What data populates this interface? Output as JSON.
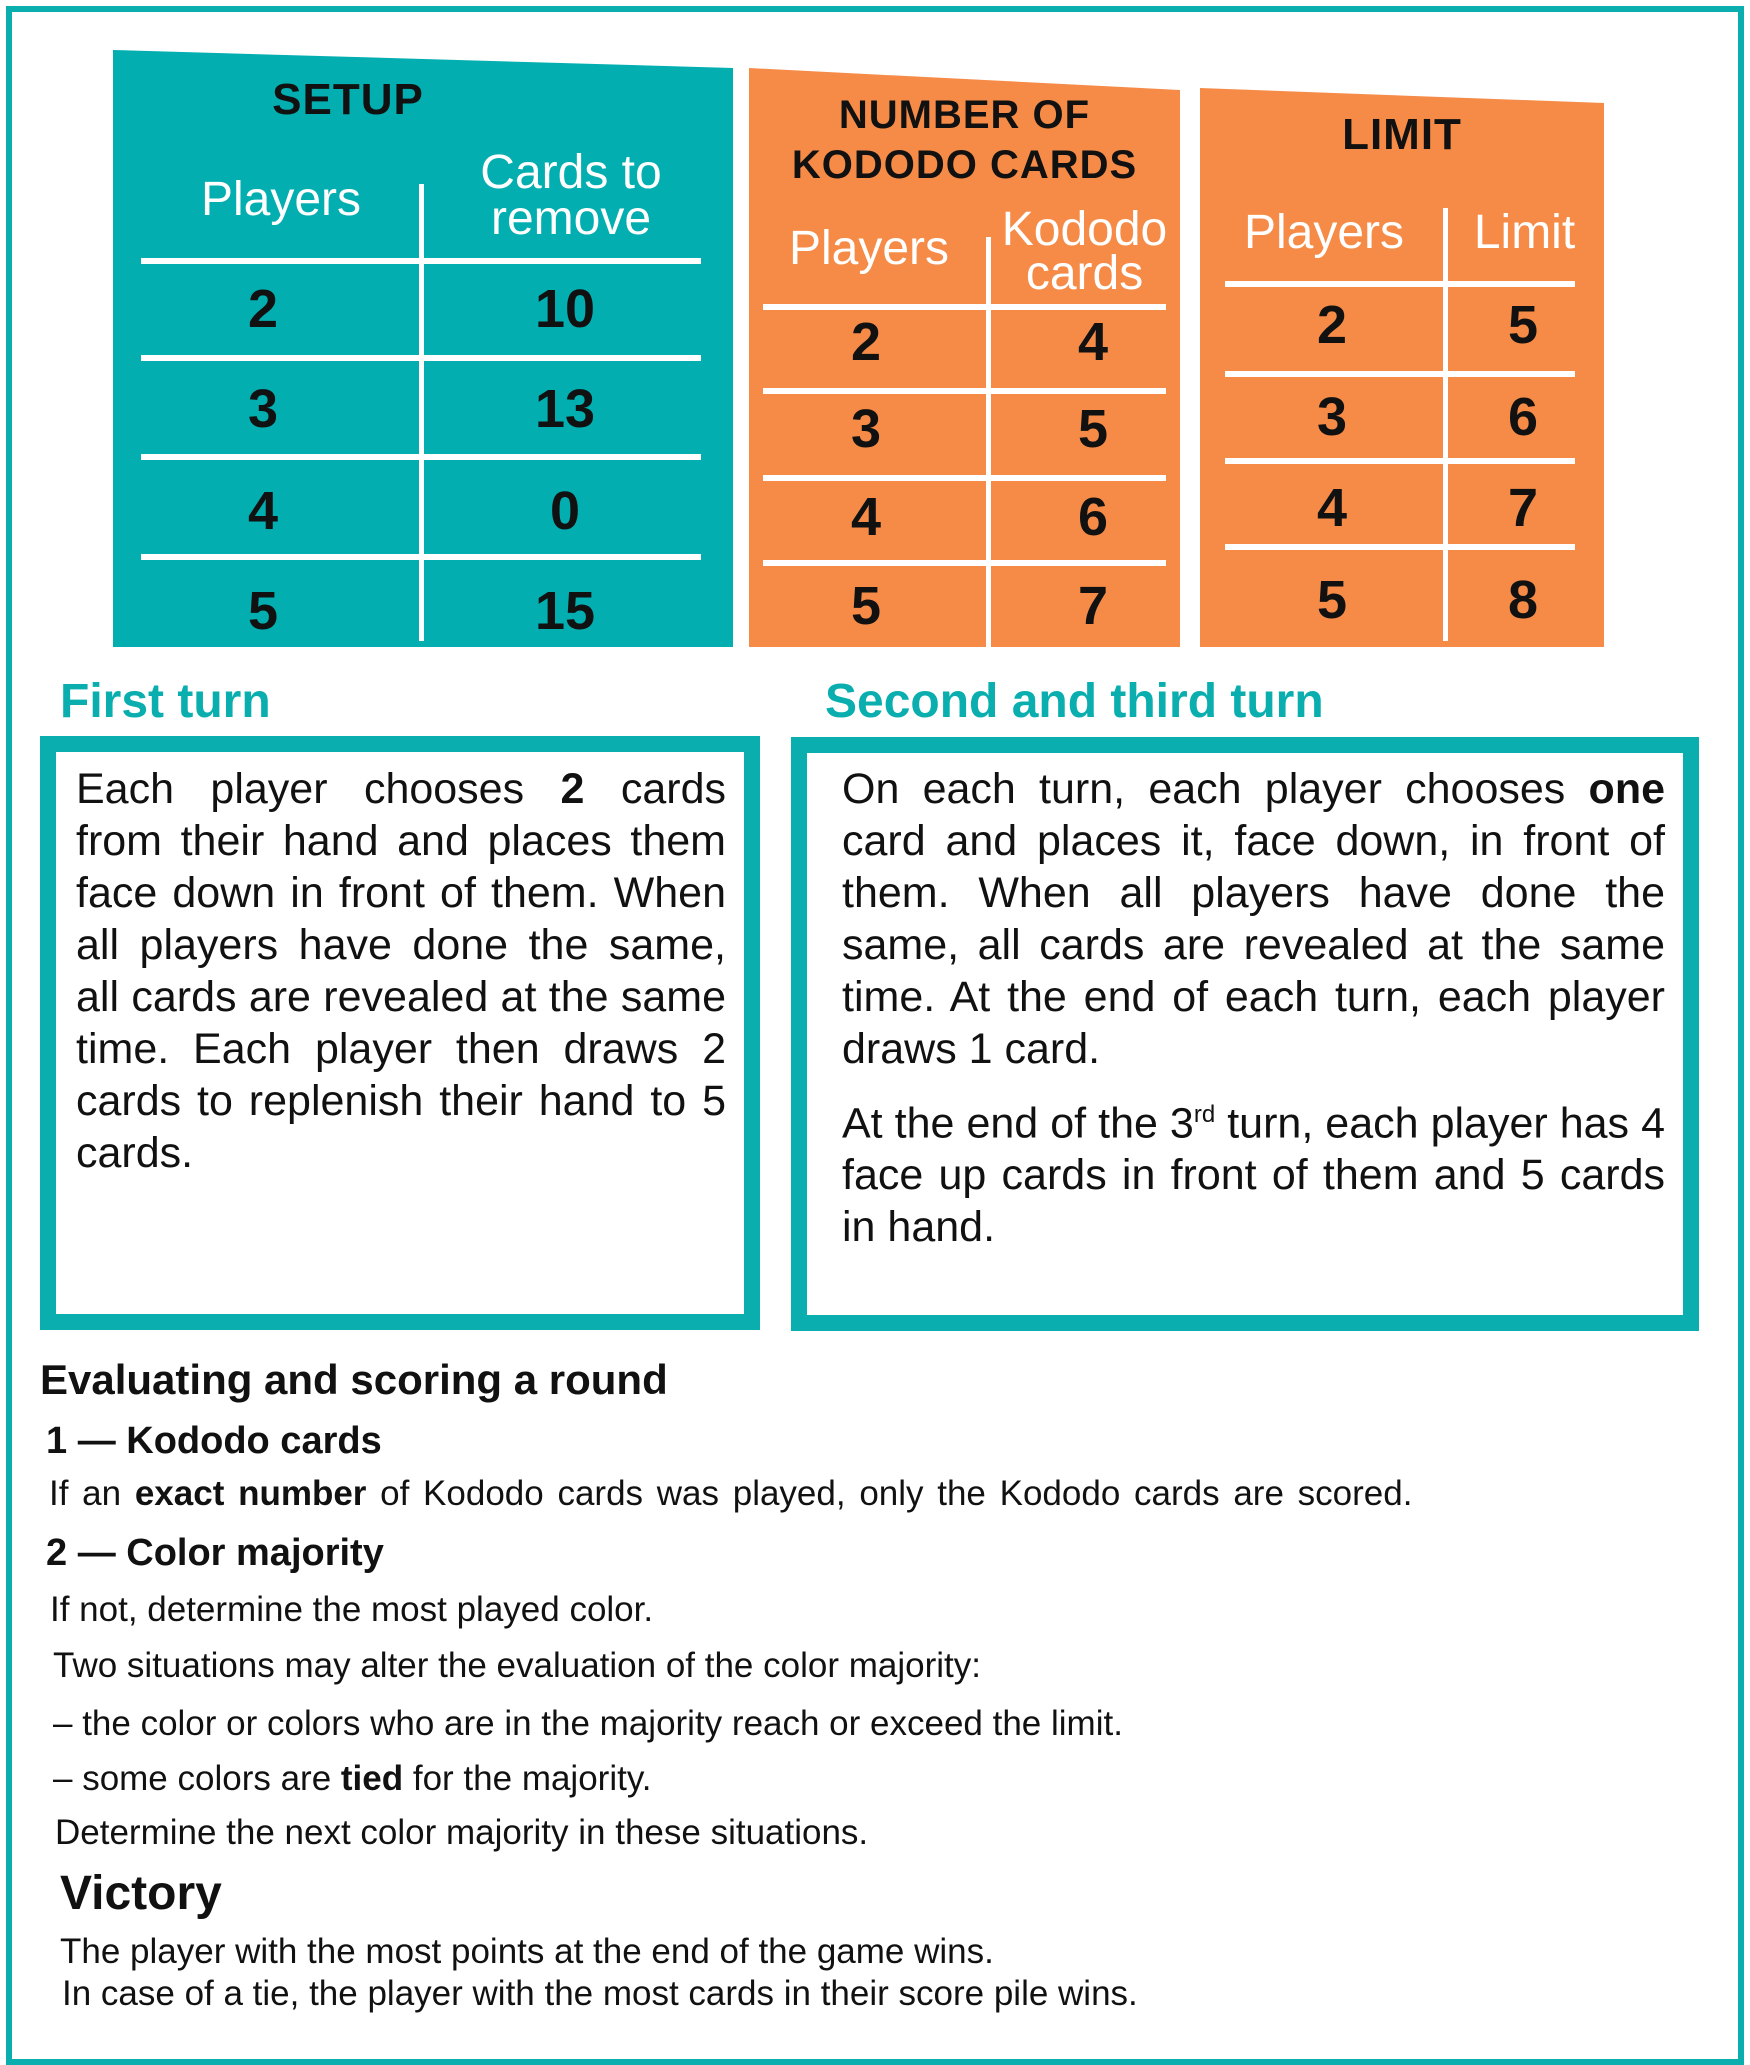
{
  "colors": {
    "teal": "#02aeb0",
    "orange": "#f58b47",
    "text": "#111111"
  },
  "setup": {
    "title": "SETUP",
    "col1": "Players",
    "col2_line1": "Cards to",
    "col2_line2": "remove",
    "rows": [
      [
        "2",
        "10"
      ],
      [
        "3",
        "13"
      ],
      [
        "4",
        "0"
      ],
      [
        "5",
        "15"
      ]
    ]
  },
  "kododo": {
    "title_line1": "NUMBER OF",
    "title_line2": "KODODO CARDS",
    "col1": "Players",
    "col2_line1": "Kododo",
    "col2_line2": "cards",
    "rows": [
      [
        "2",
        "4"
      ],
      [
        "3",
        "5"
      ],
      [
        "4",
        "6"
      ],
      [
        "5",
        "7"
      ]
    ]
  },
  "limit": {
    "title": "LIMIT",
    "col1": "Players",
    "col2": "Limit",
    "rows": [
      [
        "2",
        "5"
      ],
      [
        "3",
        "6"
      ],
      [
        "4",
        "7"
      ],
      [
        "5",
        "8"
      ]
    ]
  },
  "first_turn": {
    "heading": "First turn",
    "before": "Each player chooses ",
    "bold": "2",
    "after": " cards from their hand and places them face down in front of them. When all players have done the same, all cards are revealed at the same time. Each player then draws 2 cards to replenish their hand to 5 cards."
  },
  "second_turn": {
    "heading": "Second and third turn",
    "before": "On each turn, each player chooses ",
    "bold": "one",
    "after": " card and places it, face down, in front of them. When all players have done the same, all cards are revealed at the same time. At the end of each turn, each player draws 1 card.",
    "p2_before": "At the end of the 3",
    "p2_sup": "rd",
    "p2_after": " turn, each player has 4 face up cards in front of them and 5 cards in hand."
  },
  "scoring": {
    "heading": "Evaluating and scoring a round",
    "s1_heading": "1 — Kododo cards",
    "s1_before": "If an ",
    "s1_bold": "exact number",
    "s1_after": " of Kododo cards was played, only the Kododo cards are scored.",
    "s2_heading": "2 — Color majority",
    "s2_line1": "If not, determine the most played color.",
    "s2_line2": "Two situations may alter the evaluation of the color majority:",
    "s2_line3": "– the color or colors who are in the majority reach or exceed the limit.",
    "s2_line4_before": "– some colors are ",
    "s2_line4_bold": "tied",
    "s2_line4_after": " for the majority.",
    "s2_line5": "Determine the next color majority in these situations."
  },
  "victory": {
    "heading": "Victory",
    "line1": "The player with the most points at the end of the game wins.",
    "line2": "In case of a tie, the player with the most cards in their score pile wins."
  }
}
